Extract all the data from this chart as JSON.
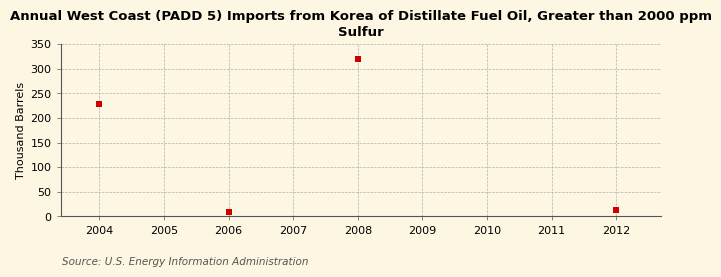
{
  "title": "Annual West Coast (PADD 5) Imports from Korea of Distillate Fuel Oil, Greater than 2000 ppm\nSulfur",
  "ylabel": "Thousand Barrels",
  "source": "Source: U.S. Energy Information Administration",
  "background_color": "#fdf6e3",
  "plot_background_color": "#fdf6e3",
  "data_points": [
    {
      "year": 2004,
      "value": 228
    },
    {
      "year": 2006,
      "value": 10
    },
    {
      "year": 2008,
      "value": 320
    },
    {
      "year": 2012,
      "value": 13
    }
  ],
  "marker_color": "#cc0000",
  "marker_size": 4,
  "xlim": [
    2003.4,
    2012.7
  ],
  "ylim": [
    0,
    350
  ],
  "yticks": [
    0,
    50,
    100,
    150,
    200,
    250,
    300,
    350
  ],
  "xticks": [
    2004,
    2005,
    2006,
    2007,
    2008,
    2009,
    2010,
    2011,
    2012
  ],
  "grid_color": "#b0b0b0",
  "title_fontsize": 9.5,
  "axis_fontsize": 8,
  "ylabel_fontsize": 8,
  "source_fontsize": 7.5,
  "tick_fontsize": 8
}
